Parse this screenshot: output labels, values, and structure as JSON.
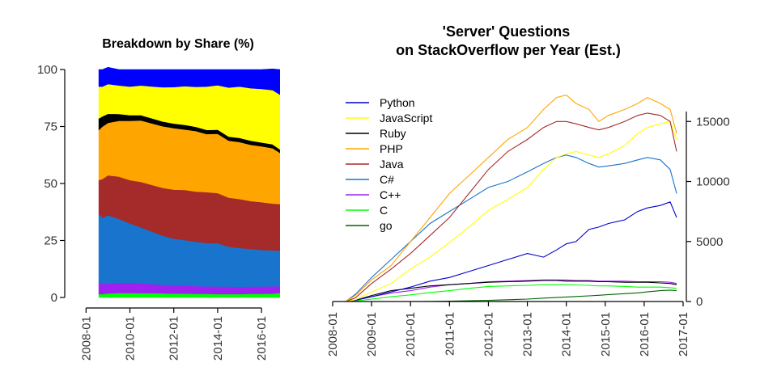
{
  "chart_data": [
    {
      "type": "area",
      "title": "Breakdown by Share (%)",
      "xlabel": "",
      "ylabel": "",
      "xlim": [
        "2007-08",
        "2017-04"
      ],
      "ylim": [
        0,
        100
      ],
      "x_ticks": [
        "2008-01",
        "2010-01",
        "2012-01",
        "2014-01",
        "2016-01"
      ],
      "y_ticks": [
        0,
        25,
        50,
        75,
        100
      ],
      "stack_order": [
        "C",
        "C++",
        "C#",
        "Java",
        "PHP",
        "Ruby",
        "JavaScript",
        "Python"
      ],
      "x": [
        "2008-08",
        "2008-10",
        "2009-01",
        "2009-07",
        "2010-01",
        "2010-07",
        "2011-01",
        "2011-07",
        "2012-01",
        "2012-07",
        "2013-01",
        "2013-07",
        "2014-01",
        "2014-07",
        "2015-01",
        "2015-07",
        "2016-01",
        "2016-07",
        "2016-11"
      ],
      "series": [
        {
          "name": "C",
          "color": "#00ff00",
          "values": [
            1.5,
            1.5,
            1.8,
            2.0,
            2.0,
            1.9,
            1.9,
            1.8,
            1.7,
            1.7,
            1.6,
            1.6,
            1.5,
            1.5,
            1.5,
            1.6,
            1.6,
            1.7,
            2.0
          ]
        },
        {
          "name": "C++",
          "color": "#a020f0",
          "values": [
            5.0,
            4.5,
            4.3,
            4.5,
            4.5,
            4.3,
            4.0,
            3.8,
            3.6,
            3.5,
            3.4,
            3.3,
            3.3,
            3.3,
            3.2,
            3.2,
            3.2,
            3.2,
            3.0
          ]
        },
        {
          "name": "C#",
          "color": "#1874cd",
          "values": [
            30.0,
            29.0,
            30.0,
            28.0,
            26.0,
            24.5,
            23.0,
            21.5,
            20.5,
            20.0,
            19.5,
            19.0,
            19.0,
            17.5,
            17.0,
            16.5,
            16.0,
            15.8,
            15.5
          ]
        },
        {
          "name": "Java",
          "color": "#a52a2a",
          "values": [
            15.0,
            17.0,
            17.5,
            18.5,
            19.0,
            20.0,
            20.5,
            21.0,
            21.5,
            22.0,
            22.0,
            22.3,
            22.0,
            21.5,
            21.5,
            21.0,
            21.0,
            20.5,
            20.5
          ]
        },
        {
          "name": "PHP",
          "color": "#ffa500",
          "values": [
            22.0,
            23.0,
            23.0,
            24.5,
            26.0,
            27.0,
            27.0,
            27.0,
            27.0,
            26.5,
            26.5,
            25.5,
            26.0,
            25.0,
            25.0,
            24.7,
            24.5,
            24.3,
            22.5
          ]
        },
        {
          "name": "Ruby",
          "color": "#000000",
          "values": [
            5.0,
            4.5,
            4.0,
            3.0,
            2.5,
            2.3,
            2.2,
            2.1,
            2.0,
            2.0,
            1.9,
            1.8,
            1.8,
            1.8,
            1.8,
            1.8,
            1.7,
            1.7,
            1.5
          ]
        },
        {
          "name": "JavaScript",
          "color": "#ffff00",
          "values": [
            14.0,
            13.0,
            13.0,
            12.5,
            12.5,
            13.0,
            14.0,
            15.0,
            16.0,
            17.0,
            17.5,
            19.0,
            19.5,
            21.5,
            22.5,
            23.0,
            23.5,
            23.8,
            24.0
          ]
        },
        {
          "name": "Python",
          "color": "#0000ff",
          "values": [
            7.5,
            7.5,
            7.4,
            7.0,
            7.5,
            7.0,
            7.4,
            7.8,
            7.7,
            7.3,
            7.6,
            7.5,
            6.9,
            7.9,
            7.5,
            8.2,
            8.5,
            9.3,
            11.0
          ]
        }
      ]
    },
    {
      "type": "line",
      "title": "'Server' Questions\non StackOverflow per Year (Est.)",
      "xlabel": "",
      "ylabel": "",
      "xlim": [
        "2008-01",
        "2017-01"
      ],
      "ylim": [
        0,
        16500
      ],
      "x_ticks": [
        "2008-01",
        "2009-01",
        "2010-01",
        "2011-01",
        "2012-01",
        "2013-01",
        "2014-01",
        "2015-01",
        "2016-01",
        "2017-01"
      ],
      "y_ticks": [
        0,
        5000,
        10000,
        15000
      ],
      "y_axis_side": "right",
      "legend_position": "top-left",
      "x": [
        "2008-05",
        "2008-08",
        "2009-01",
        "2009-07",
        "2010-01",
        "2010-07",
        "2011-01",
        "2011-07",
        "2012-01",
        "2012-07",
        "2013-01",
        "2013-06",
        "2013-10",
        "2014-01",
        "2014-04",
        "2014-08",
        "2014-11",
        "2015-02",
        "2015-07",
        "2015-11",
        "2016-02",
        "2016-06",
        "2016-09",
        "2016-11"
      ],
      "series": [
        {
          "name": "Python",
          "color": "#0000cd",
          "values": [
            0,
            100,
            400,
            800,
            1200,
            1700,
            2000,
            2500,
            3000,
            3500,
            4000,
            3700,
            4300,
            4800,
            5000,
            6000,
            6200,
            6500,
            6800,
            7500,
            7800,
            8000,
            8300,
            7000
          ]
        },
        {
          "name": "JavaScript",
          "color": "#ffff00",
          "values": [
            0,
            150,
            800,
            1500,
            2700,
            3700,
            4900,
            6200,
            7600,
            8500,
            9500,
            11000,
            12000,
            12300,
            12500,
            12200,
            12000,
            12300,
            13000,
            14000,
            14500,
            14800,
            15000,
            13500
          ]
        },
        {
          "name": "Ruby",
          "color": "#000000",
          "values": [
            0,
            100,
            500,
            900,
            1100,
            1300,
            1400,
            1500,
            1600,
            1650,
            1700,
            1750,
            1750,
            1700,
            1700,
            1700,
            1650,
            1650,
            1600,
            1600,
            1600,
            1550,
            1500,
            1400
          ]
        },
        {
          "name": "PHP",
          "color": "#ffa500",
          "values": [
            0,
            500,
            1800,
            3000,
            5000,
            7000,
            9000,
            10500,
            12000,
            13500,
            14500,
            16000,
            17000,
            17200,
            16500,
            16000,
            15000,
            15500,
            16000,
            16500,
            17000,
            16500,
            16000,
            14000
          ]
        },
        {
          "name": "Java",
          "color": "#a52a2a",
          "values": [
            0,
            300,
            1500,
            2700,
            4000,
            5500,
            7000,
            9000,
            11000,
            12500,
            13500,
            14500,
            15000,
            15000,
            14800,
            14500,
            14300,
            14500,
            15000,
            15500,
            15700,
            15500,
            15000,
            12500
          ]
        },
        {
          "name": "C#",
          "color": "#1874cd",
          "values": [
            0,
            600,
            2000,
            3500,
            5000,
            6500,
            7500,
            8500,
            9500,
            10000,
            10800,
            11500,
            12000,
            12200,
            12000,
            11500,
            11200,
            11300,
            11500,
            11800,
            12000,
            11800,
            11000,
            9000
          ]
        },
        {
          "name": "C++",
          "color": "#a020f0",
          "values": [
            0,
            100,
            400,
            700,
            900,
            1200,
            1400,
            1500,
            1650,
            1700,
            1750,
            1800,
            1800,
            1800,
            1750,
            1750,
            1700,
            1700,
            1700,
            1650,
            1650,
            1650,
            1600,
            1500
          ]
        },
        {
          "name": "C",
          "color": "#00ff00",
          "values": [
            0,
            50,
            200,
            400,
            550,
            750,
            900,
            1100,
            1250,
            1300,
            1350,
            1400,
            1400,
            1400,
            1380,
            1350,
            1300,
            1300,
            1250,
            1200,
            1200,
            1200,
            1150,
            1100
          ]
        },
        {
          "name": "go",
          "color": "#006400",
          "values": [
            0,
            0,
            0,
            0,
            0,
            10,
            30,
            60,
            100,
            150,
            200,
            280,
            330,
            380,
            420,
            470,
            520,
            580,
            650,
            720,
            800,
            900,
            950,
            900
          ]
        }
      ]
    }
  ]
}
